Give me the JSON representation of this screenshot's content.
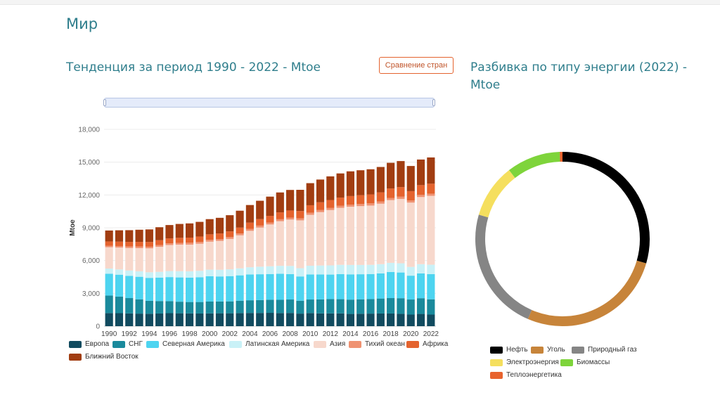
{
  "page": {
    "title": "Мир",
    "trend_title": "Тенденция за период 1990 - 2022 - Mtoe",
    "compare_button": "Сравнение стран",
    "breakdown_title_line1": "Разбивка по типу энергии (2022) -",
    "breakdown_title_line2": "Mtoe"
  },
  "chart_data": [
    {
      "type": "bar",
      "stacked": true,
      "ylabel": "Mtoe",
      "xlabel": "",
      "ylim": [
        0,
        18000
      ],
      "yticks": [
        "0",
        "3,000",
        "6,000",
        "9,000",
        "12,000",
        "15,000",
        "18,000"
      ],
      "ytick_values": [
        0,
        3000,
        6000,
        9000,
        12000,
        15000,
        18000
      ],
      "grid": true,
      "legend_position": "bottom",
      "categories": [
        "1990",
        "1991",
        "1992",
        "1993",
        "1994",
        "1995",
        "1996",
        "1997",
        "1998",
        "1999",
        "2000",
        "2001",
        "2002",
        "2003",
        "2004",
        "2005",
        "2006",
        "2007",
        "2008",
        "2009",
        "2010",
        "2011",
        "2012",
        "2013",
        "2014",
        "2015",
        "2016",
        "2017",
        "2018",
        "2019",
        "2020",
        "2021",
        "2022"
      ],
      "xtick_labels": [
        "1990",
        "1992",
        "1994",
        "1996",
        "1998",
        "2000",
        "2002",
        "2004",
        "2006",
        "2008",
        "2010",
        "2012",
        "2014",
        "2016",
        "2018",
        "2020",
        "2022"
      ],
      "series": [
        {
          "name": "Европа",
          "color": "#114b5f",
          "values": [
            1200,
            1190,
            1170,
            1150,
            1140,
            1160,
            1190,
            1180,
            1170,
            1160,
            1170,
            1180,
            1180,
            1200,
            1210,
            1210,
            1220,
            1200,
            1210,
            1150,
            1200,
            1170,
            1170,
            1170,
            1120,
            1140,
            1150,
            1160,
            1160,
            1130,
            1060,
            1120,
            1060
          ]
        },
        {
          "name": "СНГ",
          "color": "#1a8a9c",
          "values": [
            1600,
            1520,
            1400,
            1310,
            1180,
            1140,
            1100,
            1060,
            1040,
            1050,
            1080,
            1080,
            1090,
            1130,
            1160,
            1180,
            1200,
            1210,
            1230,
            1180,
            1240,
            1280,
            1310,
            1300,
            1310,
            1320,
            1330,
            1370,
            1410,
            1430,
            1380,
            1440,
            1400
          ]
        },
        {
          "name": "Северная Америка",
          "color": "#4dd4f0",
          "values": [
            2000,
            2000,
            2030,
            2060,
            2100,
            2140,
            2200,
            2220,
            2230,
            2260,
            2320,
            2290,
            2310,
            2320,
            2360,
            2360,
            2350,
            2380,
            2320,
            2220,
            2290,
            2280,
            2240,
            2290,
            2310,
            2290,
            2290,
            2300,
            2380,
            2350,
            2180,
            2270,
            2300
          ]
        },
        {
          "name": "Латинская Америка",
          "color": "#c9f1f7",
          "values": [
            470,
            480,
            490,
            500,
            510,
            530,
            550,
            570,
            580,
            590,
            600,
            610,
            620,
            640,
            660,
            690,
            710,
            730,
            750,
            750,
            800,
            820,
            840,
            850,
            860,
            850,
            840,
            840,
            840,
            840,
            800,
            840,
            860
          ]
        },
        {
          "name": "Азия",
          "color": "#f7d8cc",
          "values": [
            1950,
            2000,
            2060,
            2120,
            2190,
            2290,
            2380,
            2430,
            2440,
            2480,
            2560,
            2640,
            2780,
            3020,
            3330,
            3580,
            3820,
            4080,
            4240,
            4380,
            4650,
            4880,
            5060,
            5210,
            5330,
            5380,
            5420,
            5530,
            5740,
            5890,
            5880,
            6140,
            6300
          ]
        },
        {
          "name": "Тихий океан",
          "color": "#ef9272",
          "values": [
            140,
            140,
            150,
            150,
            150,
            160,
            160,
            160,
            170,
            170,
            170,
            170,
            170,
            170,
            180,
            180,
            180,
            180,
            180,
            190,
            190,
            190,
            190,
            190,
            190,
            200,
            200,
            200,
            200,
            200,
            190,
            200,
            200
          ]
        },
        {
          "name": "Африка",
          "color": "#e4632e",
          "values": [
            390,
            400,
            410,
            420,
            430,
            440,
            450,
            460,
            470,
            490,
            500,
            510,
            520,
            540,
            570,
            590,
            610,
            630,
            650,
            660,
            690,
            710,
            730,
            750,
            780,
            800,
            820,
            840,
            860,
            880,
            860,
            890,
            910
          ]
        },
        {
          "name": "Ближний Восток",
          "color": "#a13d11",
          "values": [
            1000,
            1040,
            1070,
            1110,
            1150,
            1190,
            1220,
            1270,
            1300,
            1340,
            1390,
            1430,
            1480,
            1540,
            1610,
            1680,
            1760,
            1820,
            1880,
            1940,
            2020,
            2080,
            2160,
            2210,
            2260,
            2280,
            2300,
            2320,
            2350,
            2380,
            2300,
            2340,
            2400
          ]
        }
      ]
    },
    {
      "type": "pie",
      "donut": true,
      "legend_position": "bottom",
      "slices": [
        {
          "name": "Нефть",
          "value": 29.5,
          "color": "#000000"
        },
        {
          "name": "Уголь",
          "value": 27,
          "color": "#c7843a"
        },
        {
          "name": "Природный газ",
          "value": 23,
          "color": "#858585"
        },
        {
          "name": "Электроэнергия",
          "value": 10,
          "color": "#f5df5e"
        },
        {
          "name": "Биомассы",
          "value": 10,
          "color": "#7ed43b"
        },
        {
          "name": "Теплоэнергетика",
          "value": 0.5,
          "color": "#e8632e"
        }
      ]
    }
  ]
}
